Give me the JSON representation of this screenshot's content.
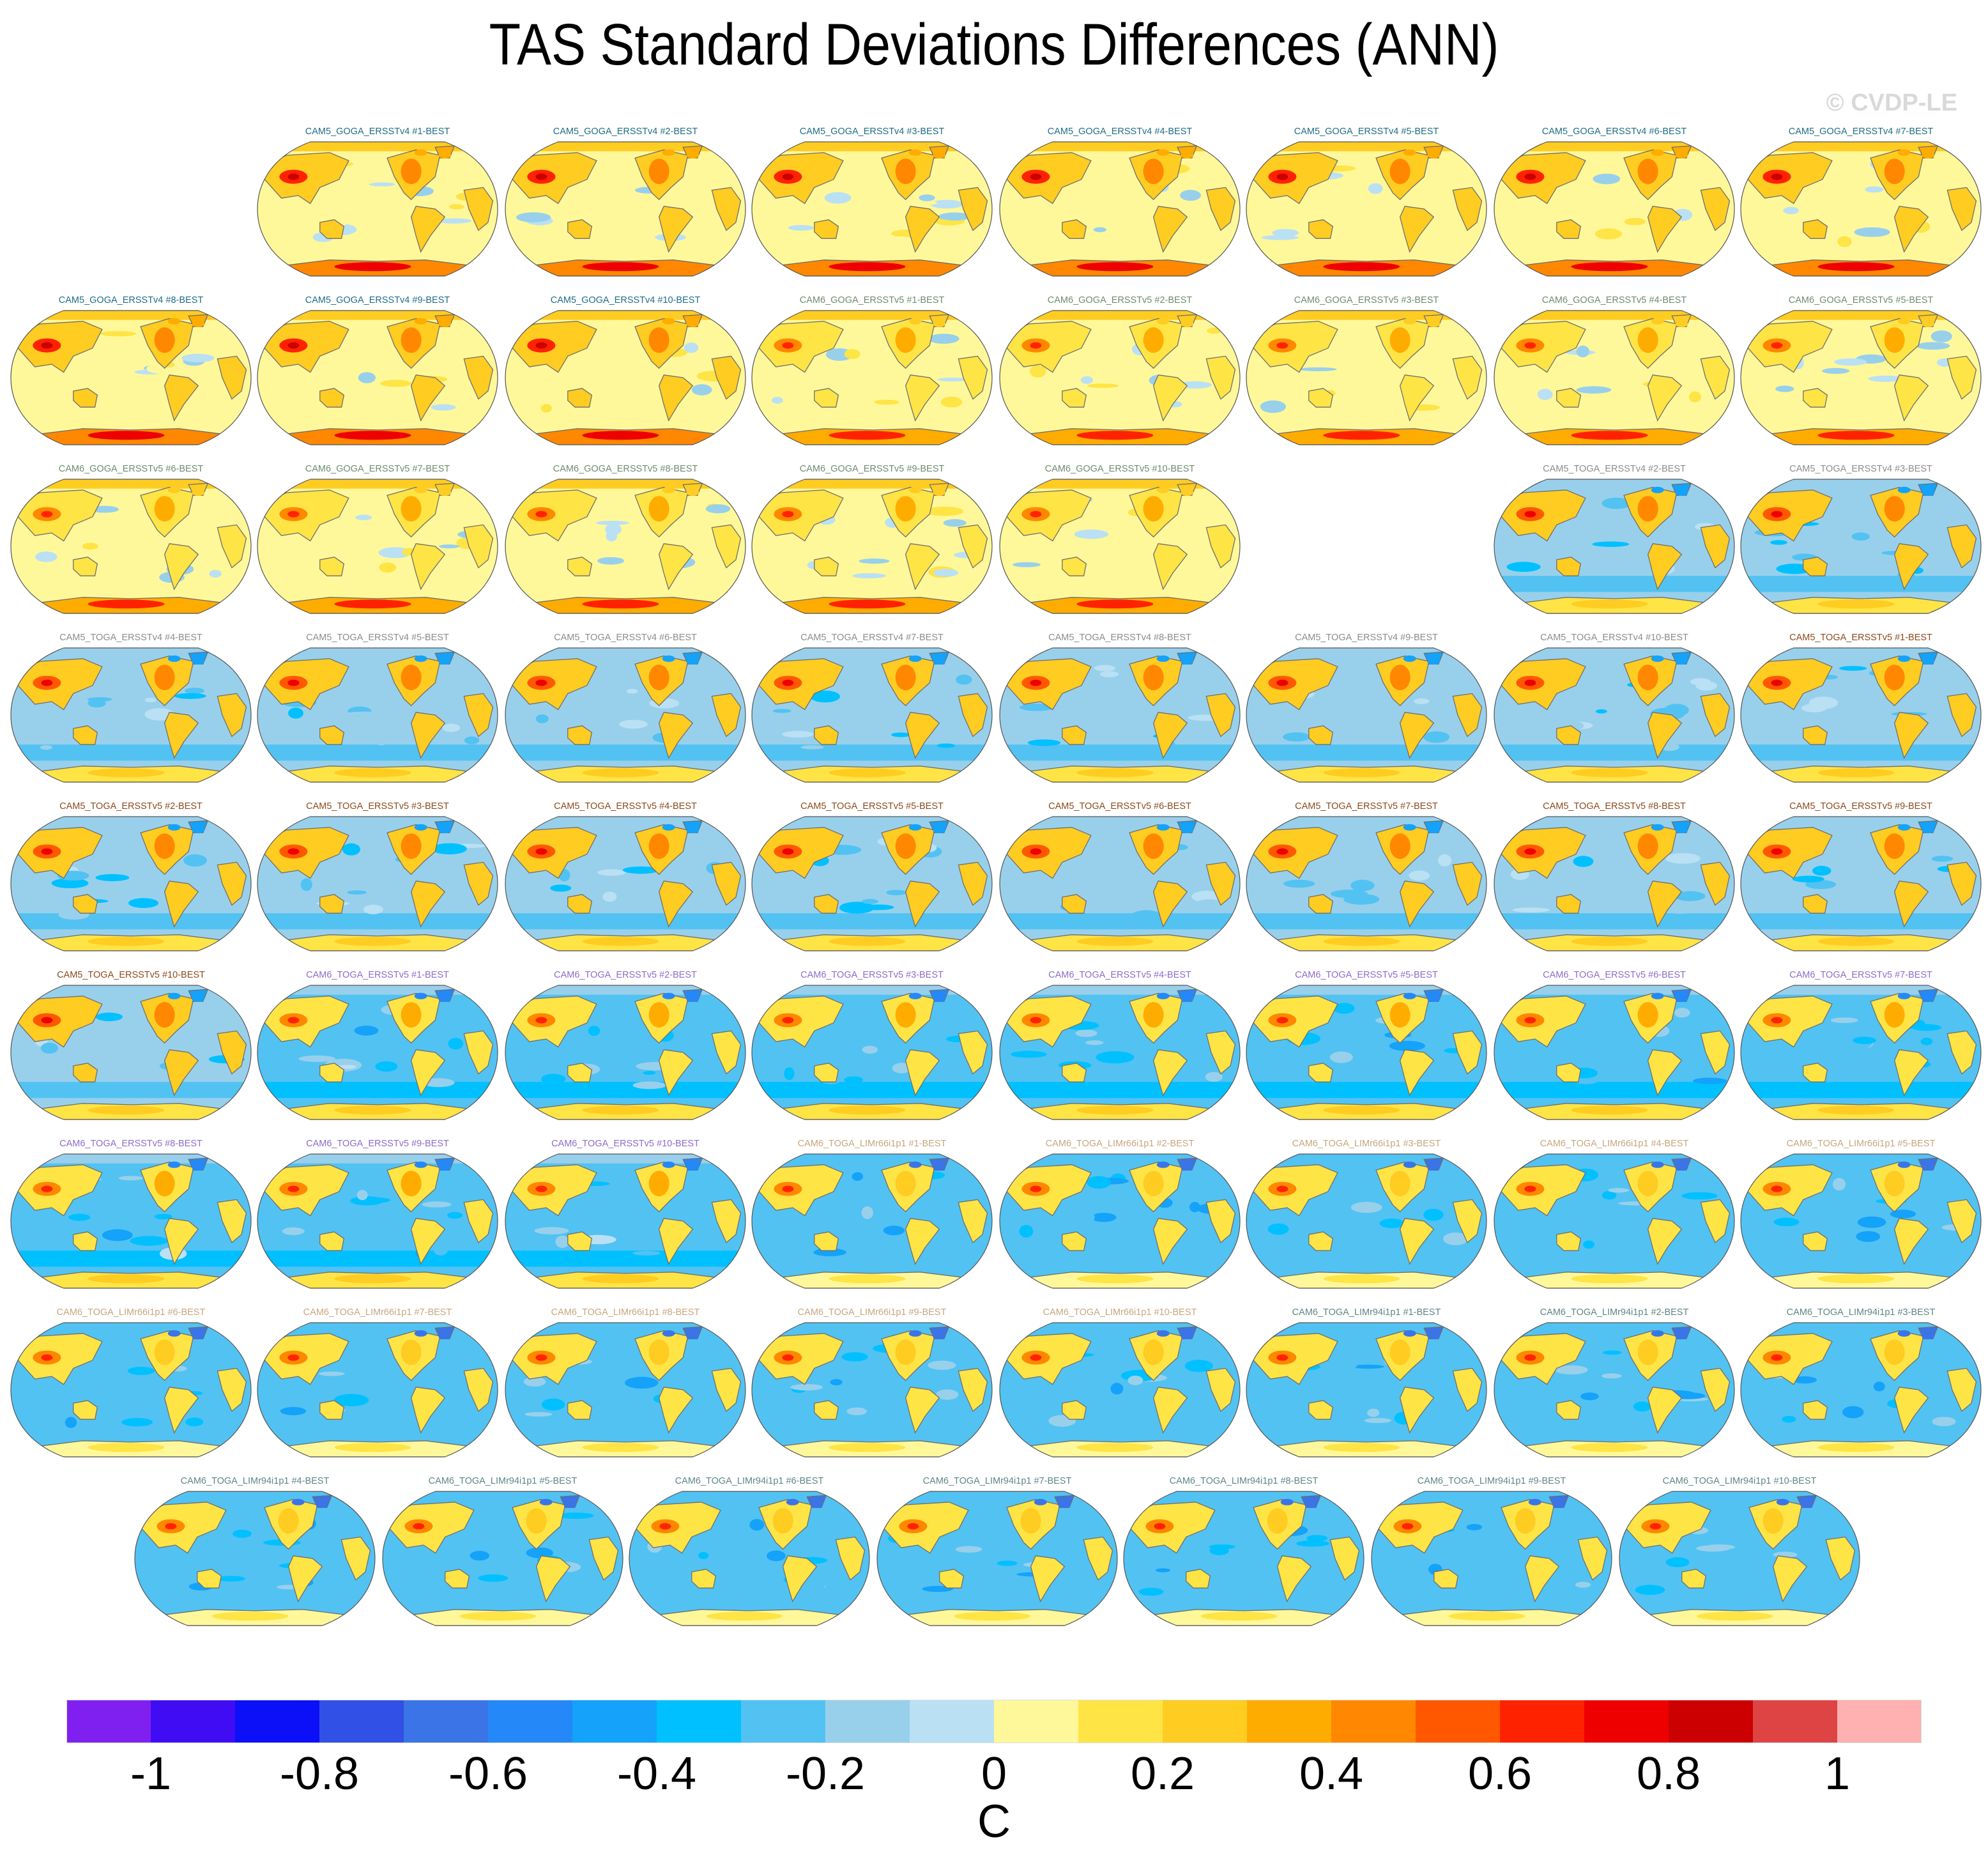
{
  "chart_data": {
    "type": "heatmap",
    "title": "TAS Standard Deviations Differences (ANN)",
    "watermark": "© CVDP-LE",
    "projection": "Robinson (Pacific-centered)",
    "variable": "TAS",
    "season": "ANN",
    "colorbar": {
      "units": "C",
      "range": [
        -1.1,
        1.1
      ],
      "levels": [
        -1.0,
        -0.9,
        -0.8,
        -0.7,
        -0.6,
        -0.5,
        -0.4,
        -0.3,
        -0.2,
        -0.1,
        0,
        0.1,
        0.2,
        0.3,
        0.4,
        0.5,
        0.6,
        0.7,
        0.8,
        0.9,
        1.0
      ],
      "tick_labels": [
        "-1",
        "-0.8",
        "-0.6",
        "-0.4",
        "-0.2",
        "0",
        "0.2",
        "0.4",
        "0.6",
        "0.8",
        "1"
      ],
      "tick_values": [
        -1,
        -0.8,
        -0.6,
        -0.4,
        -0.2,
        0,
        0.2,
        0.4,
        0.6,
        0.8,
        1
      ],
      "colors": [
        "#8020f0",
        "#400cf4",
        "#0c10f8",
        "#3050e6",
        "#3a74e6",
        "#2488f8",
        "#14a2fa",
        "#00c0ff",
        "#52c2f2",
        "#98d0ec",
        "#bae0f4",
        "#fff89a",
        "#ffe446",
        "#ffcc22",
        "#ffac00",
        "#ff8800",
        "#ff5800",
        "#ff2200",
        "#ee0000",
        "#cc0000",
        "#de4444",
        "#ffb0b0"
      ]
    },
    "group_colors": {
      "CAM5_GOGA_ERSSTv4": "#1f6e86",
      "CAM6_GOGA_ERSSTv5": "#6e8c6e",
      "CAM5_TOGA_ERSSTv4": "#8c8c8c",
      "CAM5_TOGA_ERSSTv5": "#8c4a1e",
      "CAM6_TOGA_ERSSTv5": "#8e6cc8",
      "CAM6_TOGA_LIMr66i1p1": "#c8a67e",
      "CAM6_TOGA_LIMr94i1p1": "#5e8686"
    },
    "panels": [
      {
        "title": "CAM5_GOGA_ERSSTv4 #1-BEST",
        "group": "CAM5_GOGA_ERSSTv4",
        "pattern": "goga"
      },
      {
        "title": "CAM5_GOGA_ERSSTv4 #2-BEST",
        "group": "CAM5_GOGA_ERSSTv4",
        "pattern": "goga"
      },
      {
        "title": "CAM5_GOGA_ERSSTv4 #3-BEST",
        "group": "CAM5_GOGA_ERSSTv4",
        "pattern": "goga"
      },
      {
        "title": "CAM5_GOGA_ERSSTv4 #4-BEST",
        "group": "CAM5_GOGA_ERSSTv4",
        "pattern": "goga"
      },
      {
        "title": "CAM5_GOGA_ERSSTv4 #5-BEST",
        "group": "CAM5_GOGA_ERSSTv4",
        "pattern": "goga"
      },
      {
        "title": "CAM5_GOGA_ERSSTv4 #6-BEST",
        "group": "CAM5_GOGA_ERSSTv4",
        "pattern": "goga"
      },
      {
        "title": "CAM5_GOGA_ERSSTv4 #7-BEST",
        "group": "CAM5_GOGA_ERSSTv4",
        "pattern": "goga"
      },
      {
        "title": "CAM5_GOGA_ERSSTv4 #8-BEST",
        "group": "CAM5_GOGA_ERSSTv4",
        "pattern": "goga"
      },
      {
        "title": "CAM5_GOGA_ERSSTv4 #9-BEST",
        "group": "CAM5_GOGA_ERSSTv4",
        "pattern": "goga"
      },
      {
        "title": "CAM5_GOGA_ERSSTv4 #10-BEST",
        "group": "CAM5_GOGA_ERSSTv4",
        "pattern": "goga"
      },
      {
        "title": "CAM6_GOGA_ERSSTv5 #1-BEST",
        "group": "CAM6_GOGA_ERSSTv5",
        "pattern": "goga6"
      },
      {
        "title": "CAM6_GOGA_ERSSTv5 #2-BEST",
        "group": "CAM6_GOGA_ERSSTv5",
        "pattern": "goga6"
      },
      {
        "title": "CAM6_GOGA_ERSSTv5 #3-BEST",
        "group": "CAM6_GOGA_ERSSTv5",
        "pattern": "goga6"
      },
      {
        "title": "CAM6_GOGA_ERSSTv5 #4-BEST",
        "group": "CAM6_GOGA_ERSSTv5",
        "pattern": "goga6"
      },
      {
        "title": "CAM6_GOGA_ERSSTv5 #5-BEST",
        "group": "CAM6_GOGA_ERSSTv5",
        "pattern": "goga6"
      },
      {
        "title": "CAM6_GOGA_ERSSTv5 #6-BEST",
        "group": "CAM6_GOGA_ERSSTv5",
        "pattern": "goga6"
      },
      {
        "title": "CAM6_GOGA_ERSSTv5 #7-BEST",
        "group": "CAM6_GOGA_ERSSTv5",
        "pattern": "goga6"
      },
      {
        "title": "CAM6_GOGA_ERSSTv5 #8-BEST",
        "group": "CAM6_GOGA_ERSSTv5",
        "pattern": "goga6"
      },
      {
        "title": "CAM6_GOGA_ERSSTv5 #9-BEST",
        "group": "CAM6_GOGA_ERSSTv5",
        "pattern": "goga6"
      },
      {
        "title": "CAM6_GOGA_ERSSTv5 #10-BEST",
        "group": "CAM6_GOGA_ERSSTv5",
        "pattern": "goga6"
      },
      {
        "title": "CAM5_TOGA_ERSSTv4 #2-BEST",
        "group": "CAM5_TOGA_ERSSTv4",
        "pattern": "toga"
      },
      {
        "title": "CAM5_TOGA_ERSSTv4 #3-BEST",
        "group": "CAM5_TOGA_ERSSTv4",
        "pattern": "toga"
      },
      {
        "title": "CAM5_TOGA_ERSSTv4 #4-BEST",
        "group": "CAM5_TOGA_ERSSTv4",
        "pattern": "toga"
      },
      {
        "title": "CAM5_TOGA_ERSSTv4 #5-BEST",
        "group": "CAM5_TOGA_ERSSTv4",
        "pattern": "toga"
      },
      {
        "title": "CAM5_TOGA_ERSSTv4 #6-BEST",
        "group": "CAM5_TOGA_ERSSTv4",
        "pattern": "toga"
      },
      {
        "title": "CAM5_TOGA_ERSSTv4 #7-BEST",
        "group": "CAM5_TOGA_ERSSTv4",
        "pattern": "toga"
      },
      {
        "title": "CAM5_TOGA_ERSSTv4 #8-BEST",
        "group": "CAM5_TOGA_ERSSTv4",
        "pattern": "toga"
      },
      {
        "title": "CAM5_TOGA_ERSSTv4 #9-BEST",
        "group": "CAM5_TOGA_ERSSTv4",
        "pattern": "toga"
      },
      {
        "title": "CAM5_TOGA_ERSSTv4 #10-BEST",
        "group": "CAM5_TOGA_ERSSTv4",
        "pattern": "toga"
      },
      {
        "title": "CAM5_TOGA_ERSSTv5 #1-BEST",
        "group": "CAM5_TOGA_ERSSTv5",
        "pattern": "toga"
      },
      {
        "title": "CAM5_TOGA_ERSSTv5 #2-BEST",
        "group": "CAM5_TOGA_ERSSTv5",
        "pattern": "toga"
      },
      {
        "title": "CAM5_TOGA_ERSSTv5 #3-BEST",
        "group": "CAM5_TOGA_ERSSTv5",
        "pattern": "toga"
      },
      {
        "title": "CAM5_TOGA_ERSSTv5 #4-BEST",
        "group": "CAM5_TOGA_ERSSTv5",
        "pattern": "toga"
      },
      {
        "title": "CAM5_TOGA_ERSSTv5 #5-BEST",
        "group": "CAM5_TOGA_ERSSTv5",
        "pattern": "toga"
      },
      {
        "title": "CAM5_TOGA_ERSSTv5 #6-BEST",
        "group": "CAM5_TOGA_ERSSTv5",
        "pattern": "toga"
      },
      {
        "title": "CAM5_TOGA_ERSSTv5 #7-BEST",
        "group": "CAM5_TOGA_ERSSTv5",
        "pattern": "toga"
      },
      {
        "title": "CAM5_TOGA_ERSSTv5 #8-BEST",
        "group": "CAM5_TOGA_ERSSTv5",
        "pattern": "toga"
      },
      {
        "title": "CAM5_TOGA_ERSSTv5 #9-BEST",
        "group": "CAM5_TOGA_ERSSTv5",
        "pattern": "toga"
      },
      {
        "title": "CAM5_TOGA_ERSSTv5 #10-BEST",
        "group": "CAM5_TOGA_ERSSTv5",
        "pattern": "toga"
      },
      {
        "title": "CAM6_TOGA_ERSSTv5 #1-BEST",
        "group": "CAM6_TOGA_ERSSTv5",
        "pattern": "toga6"
      },
      {
        "title": "CAM6_TOGA_ERSSTv5 #2-BEST",
        "group": "CAM6_TOGA_ERSSTv5",
        "pattern": "toga6"
      },
      {
        "title": "CAM6_TOGA_ERSSTv5 #3-BEST",
        "group": "CAM6_TOGA_ERSSTv5",
        "pattern": "toga6"
      },
      {
        "title": "CAM6_TOGA_ERSSTv5 #4-BEST",
        "group": "CAM6_TOGA_ERSSTv5",
        "pattern": "toga6"
      },
      {
        "title": "CAM6_TOGA_ERSSTv5 #5-BEST",
        "group": "CAM6_TOGA_ERSSTv5",
        "pattern": "toga6"
      },
      {
        "title": "CAM6_TOGA_ERSSTv5 #6-BEST",
        "group": "CAM6_TOGA_ERSSTv5",
        "pattern": "toga6"
      },
      {
        "title": "CAM6_TOGA_ERSSTv5 #7-BEST",
        "group": "CAM6_TOGA_ERSSTv5",
        "pattern": "toga6"
      },
      {
        "title": "CAM6_TOGA_ERSSTv5 #8-BEST",
        "group": "CAM6_TOGA_ERSSTv5",
        "pattern": "toga6"
      },
      {
        "title": "CAM6_TOGA_ERSSTv5 #9-BEST",
        "group": "CAM6_TOGA_ERSSTv5",
        "pattern": "toga6"
      },
      {
        "title": "CAM6_TOGA_ERSSTv5 #10-BEST",
        "group": "CAM6_TOGA_ERSSTv5",
        "pattern": "toga6"
      },
      {
        "title": "CAM6_TOGA_LIMr66i1p1 #1-BEST",
        "group": "CAM6_TOGA_LIMr66i1p1",
        "pattern": "lim"
      },
      {
        "title": "CAM6_TOGA_LIMr66i1p1 #2-BEST",
        "group": "CAM6_TOGA_LIMr66i1p1",
        "pattern": "lim"
      },
      {
        "title": "CAM6_TOGA_LIMr66i1p1 #3-BEST",
        "group": "CAM6_TOGA_LIMr66i1p1",
        "pattern": "lim"
      },
      {
        "title": "CAM6_TOGA_LIMr66i1p1 #4-BEST",
        "group": "CAM6_TOGA_LIMr66i1p1",
        "pattern": "lim"
      },
      {
        "title": "CAM6_TOGA_LIMr66i1p1 #5-BEST",
        "group": "CAM6_TOGA_LIMr66i1p1",
        "pattern": "lim"
      },
      {
        "title": "CAM6_TOGA_LIMr66i1p1 #6-BEST",
        "group": "CAM6_TOGA_LIMr66i1p1",
        "pattern": "lim"
      },
      {
        "title": "CAM6_TOGA_LIMr66i1p1 #7-BEST",
        "group": "CAM6_TOGA_LIMr66i1p1",
        "pattern": "lim"
      },
      {
        "title": "CAM6_TOGA_LIMr66i1p1 #8-BEST",
        "group": "CAM6_TOGA_LIMr66i1p1",
        "pattern": "lim"
      },
      {
        "title": "CAM6_TOGA_LIMr66i1p1 #9-BEST",
        "group": "CAM6_TOGA_LIMr66i1p1",
        "pattern": "lim"
      },
      {
        "title": "CAM6_TOGA_LIMr66i1p1 #10-BEST",
        "group": "CAM6_TOGA_LIMr66i1p1",
        "pattern": "lim"
      },
      {
        "title": "CAM6_TOGA_LIMr94i1p1 #1-BEST",
        "group": "CAM6_TOGA_LIMr94i1p1",
        "pattern": "lim"
      },
      {
        "title": "CAM6_TOGA_LIMr94i1p1 #2-BEST",
        "group": "CAM6_TOGA_LIMr94i1p1",
        "pattern": "lim"
      },
      {
        "title": "CAM6_TOGA_LIMr94i1p1 #3-BEST",
        "group": "CAM6_TOGA_LIMr94i1p1",
        "pattern": "lim"
      },
      {
        "title": "CAM6_TOGA_LIMr94i1p1 #4-BEST",
        "group": "CAM6_TOGA_LIMr94i1p1",
        "pattern": "lim"
      },
      {
        "title": "CAM6_TOGA_LIMr94i1p1 #5-BEST",
        "group": "CAM6_TOGA_LIMr94i1p1",
        "pattern": "lim"
      },
      {
        "title": "CAM6_TOGA_LIMr94i1p1 #6-BEST",
        "group": "CAM6_TOGA_LIMr94i1p1",
        "pattern": "lim"
      },
      {
        "title": "CAM6_TOGA_LIMr94i1p1 #7-BEST",
        "group": "CAM6_TOGA_LIMr94i1p1",
        "pattern": "lim"
      },
      {
        "title": "CAM6_TOGA_LIMr94i1p1 #8-BEST",
        "group": "CAM6_TOGA_LIMr94i1p1",
        "pattern": "lim"
      },
      {
        "title": "CAM6_TOGA_LIMr94i1p1 #9-BEST",
        "group": "CAM6_TOGA_LIMr94i1p1",
        "pattern": "lim"
      },
      {
        "title": "CAM6_TOGA_LIMr94i1p1 #10-BEST",
        "group": "CAM6_TOGA_LIMr94i1p1",
        "pattern": "lim"
      }
    ],
    "patterns": {
      "goga": {
        "ocean": 0.0,
        "land": 0.25,
        "asia_hotspot": 0.6,
        "antarctic": 0.75,
        "southern_ocean": 0.05,
        "arctic": 0.3
      },
      "goga6": {
        "ocean": 0.0,
        "land": 0.15,
        "asia_hotspot": 0.4,
        "antarctic": 0.65,
        "southern_ocean": 0.0,
        "arctic": 0.2
      },
      "toga": {
        "ocean": -0.2,
        "land": 0.25,
        "asia_hotspot": 0.5,
        "antarctic": 0.2,
        "southern_ocean": -0.3,
        "arctic": -0.5
      },
      "toga6": {
        "ocean": -0.25,
        "land": 0.15,
        "asia_hotspot": 0.45,
        "antarctic": 0.2,
        "southern_ocean": -0.35,
        "arctic": -0.6
      },
      "lim": {
        "ocean": -0.3,
        "land": 0.1,
        "asia_hotspot": 0.4,
        "antarctic": 0.1,
        "southern_ocean": -0.3,
        "arctic": -0.7
      }
    }
  }
}
